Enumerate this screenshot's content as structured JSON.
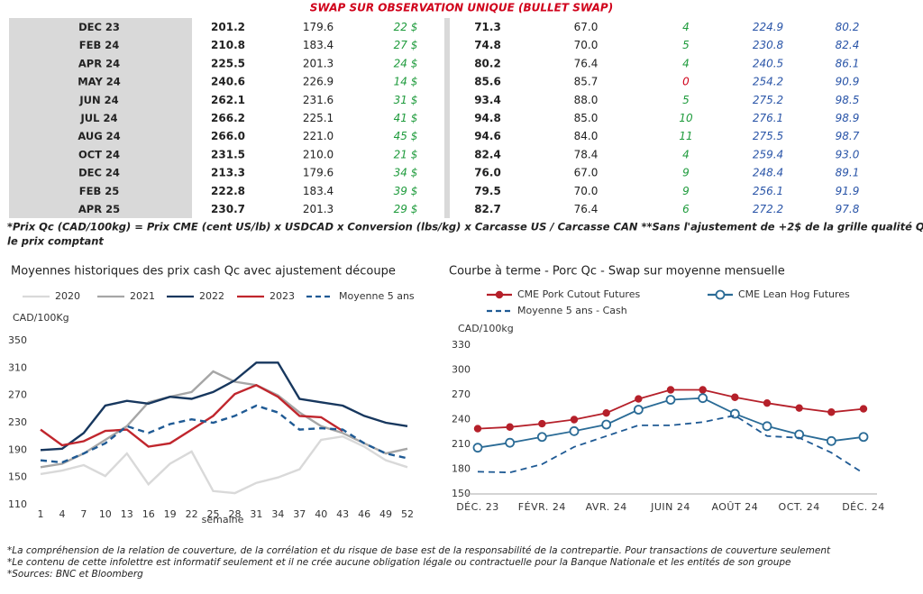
{
  "title": "SWAP SUR OBSERVATION UNIQUE (BULLET SWAP)",
  "table": {
    "rows": [
      [
        "DEC 23",
        "201.2",
        "179.6",
        "22 $",
        "71.3",
        "67.0",
        "4",
        "224.9",
        "80.2"
      ],
      [
        "FEB 24",
        "210.8",
        "183.4",
        "27 $",
        "74.8",
        "70.0",
        "5",
        "230.8",
        "82.4"
      ],
      [
        "APR 24",
        "225.5",
        "201.3",
        "24 $",
        "80.2",
        "76.4",
        "4",
        "240.5",
        "86.1"
      ],
      [
        "MAY 24",
        "240.6",
        "226.9",
        "14 $",
        "85.6",
        "85.7",
        "0",
        "254.2",
        "90.9"
      ],
      [
        "JUN 24",
        "262.1",
        "231.6",
        "31 $",
        "93.4",
        "88.0",
        "5",
        "275.2",
        "98.5"
      ],
      [
        "JUL 24",
        "266.2",
        "225.1",
        "41 $",
        "94.8",
        "85.0",
        "10",
        "276.1",
        "98.9"
      ],
      [
        "AUG 24",
        "266.0",
        "221.0",
        "45 $",
        "94.6",
        "84.0",
        "11",
        "275.5",
        "98.7"
      ],
      [
        "OCT 24",
        "231.5",
        "210.0",
        "21 $",
        "82.4",
        "78.4",
        "4",
        "259.4",
        "93.0"
      ],
      [
        "DEC 24",
        "213.3",
        "179.6",
        "34 $",
        "76.0",
        "67.0",
        "9",
        "248.4",
        "89.1"
      ],
      [
        "FEB 25",
        "222.8",
        "183.4",
        "39 $",
        "79.5",
        "70.0",
        "9",
        "256.1",
        "91.9"
      ],
      [
        "APR 25",
        "230.7",
        "201.3",
        "29 $",
        "82.7",
        "76.4",
        "6",
        "272.2",
        "97.8"
      ]
    ]
  },
  "table_note": [
    "*Prix Qc (CAD/100kg) = Prix CME (cent US/lb) x USDCAD x Conversion (lbs/kg) x Carcasse US / Carcasse CAN **Sans l'ajustement de +2$ de la grille qualité Québec pour",
    "le prix comptant"
  ],
  "chart_data": [
    {
      "type": "line",
      "title": "Moyennes historiques des prix cash Qc avec ajustement découpe",
      "y_label": "CAD/100Kg",
      "x_label": "semaine",
      "x": [
        1,
        4,
        7,
        10,
        13,
        16,
        19,
        22,
        25,
        28,
        31,
        34,
        37,
        40,
        43,
        46,
        49,
        52
      ],
      "xlim": [
        1,
        52
      ],
      "xticks": [
        1,
        4,
        7,
        10,
        13,
        16,
        19,
        22,
        25,
        28,
        31,
        34,
        37,
        40,
        43,
        46,
        49,
        52
      ],
      "ylim": [
        110,
        350
      ],
      "yticks": [
        110,
        150,
        190,
        230,
        270,
        310,
        350
      ],
      "grid": false,
      "legend": "top",
      "series": [
        {
          "name": "2020",
          "color": "#d9d9d9",
          "dash": false,
          "values": [
            155,
            160,
            168,
            152,
            185,
            140,
            170,
            188,
            130,
            127,
            142,
            150,
            162,
            205,
            210,
            195,
            175,
            165
          ]
        },
        {
          "name": "2021",
          "color": "#a6a6a6",
          "dash": false,
          "values": [
            165,
            170,
            185,
            205,
            225,
            260,
            268,
            275,
            305,
            290,
            285,
            270,
            245,
            225,
            215,
            200,
            185,
            192
          ]
        },
        {
          "name": "2022",
          "color": "#17375e",
          "dash": false,
          "values": [
            190,
            192,
            215,
            255,
            262,
            258,
            268,
            265,
            275,
            292,
            318,
            318,
            265,
            260,
            255,
            240,
            230,
            225
          ]
        },
        {
          "name": "2023",
          "color": "#c0262d",
          "dash": false,
          "values": [
            220,
            197,
            203,
            218,
            220,
            195,
            200,
            220,
            240,
            272,
            285,
            268,
            240,
            238,
            218,
            null,
            null,
            null
          ]
        },
        {
          "name": "Moyenne 5 ans",
          "color": "#1f5a94",
          "dash": true,
          "values": [
            175,
            172,
            185,
            200,
            225,
            215,
            228,
            235,
            230,
            240,
            255,
            245,
            220,
            222,
            220,
            200,
            185,
            178
          ]
        }
      ]
    },
    {
      "type": "line",
      "title": "Courbe à terme - Porc Qc - Swap sur moyenne mensuelle",
      "y_label": "CAD/100kg",
      "categories": [
        "DÉC. 23",
        null,
        "FÉVR. 24",
        null,
        "AVR. 24",
        null,
        "JUIN 24",
        null,
        "AOÛT 24",
        null,
        "OCT. 24",
        null,
        "DÉC. 24"
      ],
      "ylim": [
        150,
        330
      ],
      "yticks": [
        150,
        180,
        210,
        240,
        270,
        300,
        330
      ],
      "grid": false,
      "legend": "top",
      "series": [
        {
          "name": "CME Pork Cutout Futures",
          "color": "#b5202a",
          "dash": false,
          "marker": "dot",
          "values": [
            229,
            231,
            235,
            240,
            248,
            265,
            276,
            276,
            267,
            260,
            254,
            249,
            253
          ]
        },
        {
          "name": "CME Lean Hog Futures",
          "color": "#2a6b96",
          "dash": false,
          "marker": "circle",
          "values": [
            206,
            212,
            219,
            226,
            234,
            252,
            264,
            266,
            247,
            232,
            222,
            214,
            219
          ]
        },
        {
          "name": "Moyenne 5 ans - Cash",
          "color": "#1f5a94",
          "dash": true,
          "marker": "none",
          "values": [
            177,
            176,
            186,
            207,
            220,
            233,
            233,
            237,
            245,
            220,
            218,
            200,
            175
          ]
        }
      ]
    }
  ],
  "footnotes": [
    "*La compréhension de la relation de couverture, de la corrélation et du risque de base est de la responsabilité de la contrepartie. Pour transactions de couverture seulement",
    "*Le contenu de cette infolettre est informatif seulement et il ne crée aucune obligation légale ou contractuelle pour la Banque Nationale et les entités de son groupe",
    "*Sources: BNC et Bloomberg"
  ]
}
